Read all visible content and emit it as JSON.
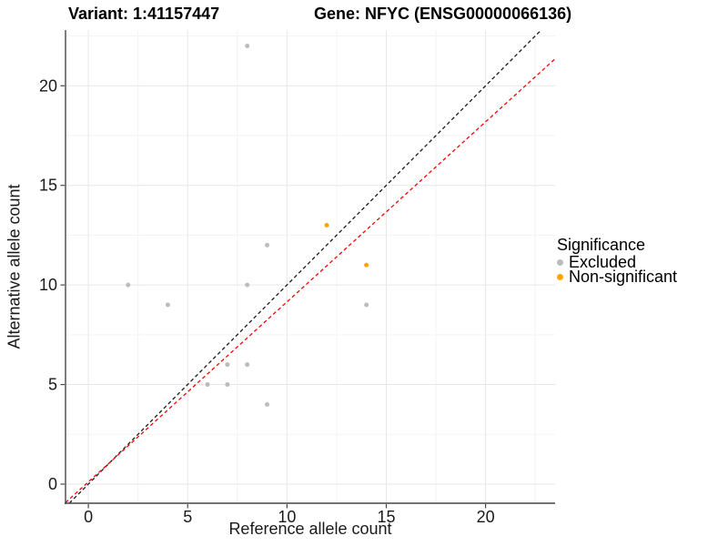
{
  "chart_data": {
    "type": "scatter",
    "title_left": "Variant: 1:41157447",
    "title_right": "Gene: NFYC (ENSG00000066136)",
    "xlabel": "Reference allele count",
    "ylabel": "Alternative allele count",
    "xlim": [
      -1.15,
      23.5
    ],
    "ylim": [
      -0.96,
      22.8
    ],
    "x_ticks": [
      0,
      5,
      10,
      15,
      20
    ],
    "y_ticks": [
      0,
      5,
      10,
      15,
      20
    ],
    "x_minor_ticks": [
      2.5,
      7.5,
      12.5,
      17.5,
      22.5
    ],
    "y_minor_ticks": [
      2.5,
      7.5,
      12.5,
      17.5,
      22.5
    ],
    "grid": true,
    "legend_position": "right",
    "series": [
      {
        "name": "Excluded",
        "color": "#bcbcbc",
        "points": [
          [
            2,
            10
          ],
          [
            4,
            9
          ],
          [
            6,
            5
          ],
          [
            7,
            5
          ],
          [
            7,
            6
          ],
          [
            8,
            6
          ],
          [
            8,
            10
          ],
          [
            8,
            22
          ],
          [
            9,
            4
          ],
          [
            9,
            12
          ],
          [
            14,
            9
          ]
        ]
      },
      {
        "name": "Non-significant",
        "color": "#ffa500",
        "points": [
          [
            12,
            13
          ],
          [
            14,
            11
          ]
        ]
      }
    ],
    "lines": [
      {
        "name": "identity-line",
        "color": "#1a1a1a",
        "slope": 1.0,
        "intercept": 0.0,
        "style": "dashed"
      },
      {
        "name": "fit-line",
        "color": "#ff0000",
        "slope": 0.904,
        "intercept": 0.11,
        "style": "dashed"
      }
    ]
  },
  "legend": {
    "title": "Significance",
    "items": [
      {
        "label": "Excluded",
        "color": "#bcbcbc"
      },
      {
        "label": "Non-significant",
        "color": "#ffa500"
      }
    ]
  },
  "theme": {
    "major_grid_color": "#e7e7e7",
    "minor_grid_color": "#f3f3f3",
    "axis_line_color": "#474747",
    "tick_color": "#474747",
    "point_radius": 2.5
  }
}
